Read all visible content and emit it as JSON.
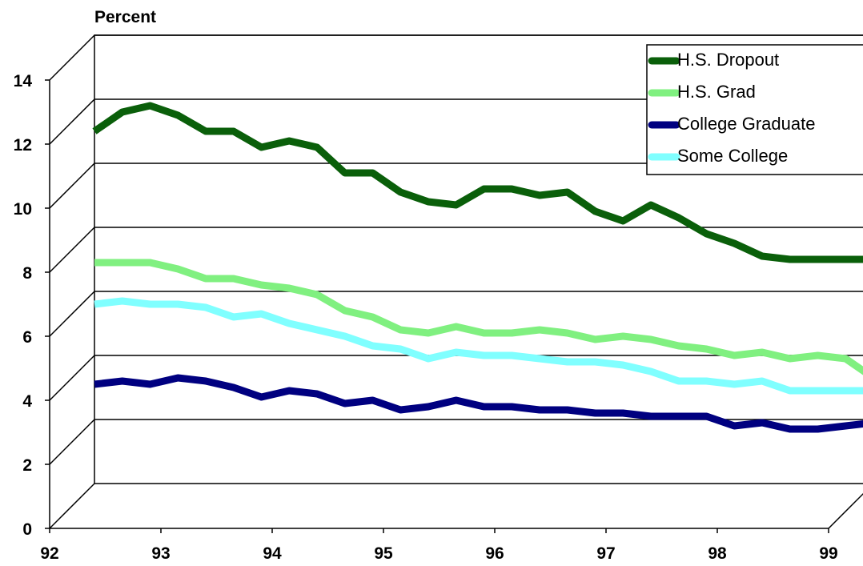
{
  "chart_data": {
    "type": "line",
    "y_label": "Percent",
    "x": [
      92,
      92.25,
      92.5,
      92.75,
      93,
      93.25,
      93.5,
      93.75,
      94,
      94.25,
      94.5,
      94.75,
      95,
      95.25,
      95.5,
      95.75,
      96,
      96.25,
      96.5,
      96.75,
      97,
      97.25,
      97.5,
      97.75,
      98,
      98.25,
      98.5,
      98.75,
      99
    ],
    "xlim": [
      92,
      99
    ],
    "xticks": [
      92,
      93,
      94,
      95,
      96,
      97,
      98,
      99
    ],
    "ylim": [
      0,
      14
    ],
    "yticks": [
      0,
      2,
      4,
      6,
      8,
      10,
      12,
      14
    ],
    "grid": true,
    "legend": "upper right",
    "series": [
      {
        "name": "H.S. Dropout",
        "color": "#0a5f0a",
        "values": [
          11.0,
          11.6,
          11.8,
          11.5,
          11.0,
          11.0,
          10.5,
          10.7,
          10.5,
          9.7,
          9.7,
          9.1,
          8.8,
          8.7,
          9.2,
          9.2,
          9.0,
          9.1,
          8.5,
          8.2,
          8.7,
          8.3,
          7.8,
          7.5,
          7.1,
          7.0,
          7.0,
          7.0,
          7.0
        ]
      },
      {
        "name": "H.S. Grad",
        "color": "#80f080",
        "values": [
          6.9,
          6.9,
          6.9,
          6.7,
          6.4,
          6.4,
          6.2,
          6.1,
          5.9,
          5.4,
          5.2,
          4.8,
          4.7,
          4.9,
          4.7,
          4.7,
          4.8,
          4.7,
          4.5,
          4.6,
          4.5,
          4.3,
          4.2,
          4.0,
          4.1,
          3.9,
          4.0,
          3.9,
          3.3
        ]
      },
      {
        "name": "College Graduate",
        "color": "#000080",
        "values": [
          3.1,
          3.2,
          3.1,
          3.3,
          3.2,
          3.0,
          2.7,
          2.9,
          2.8,
          2.5,
          2.6,
          2.3,
          2.4,
          2.6,
          2.4,
          2.4,
          2.3,
          2.3,
          2.2,
          2.2,
          2.1,
          2.1,
          2.1,
          1.8,
          1.9,
          1.7,
          1.7,
          1.8,
          1.9
        ]
      },
      {
        "name": "Some College",
        "color": "#80ffff",
        "values": [
          5.6,
          5.7,
          5.6,
          5.6,
          5.5,
          5.2,
          5.3,
          5.0,
          4.8,
          4.6,
          4.3,
          4.2,
          3.9,
          4.1,
          4.0,
          4.0,
          3.9,
          3.8,
          3.8,
          3.7,
          3.5,
          3.2,
          3.2,
          3.1,
          3.2,
          2.9,
          2.9,
          2.9,
          2.9
        ]
      }
    ]
  }
}
